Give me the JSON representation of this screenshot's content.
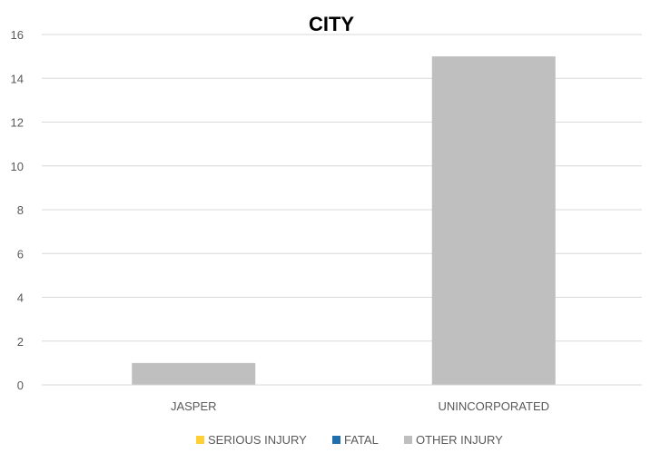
{
  "chart_data": {
    "type": "bar",
    "title": "CITY",
    "categories": [
      "JASPER",
      "UNINCORPORATED"
    ],
    "series": [
      {
        "name": "SERIOUS INJURY",
        "color": "#FFD034",
        "values": [
          0,
          0
        ]
      },
      {
        "name": "FATAL",
        "color": "#1F6FAF",
        "values": [
          0,
          0
        ]
      },
      {
        "name": "OTHER INJURY",
        "color": "#BFBFBF",
        "values": [
          1,
          15
        ]
      }
    ],
    "ylim": [
      0,
      16
    ],
    "yticks": [
      0,
      2,
      4,
      6,
      8,
      10,
      12,
      14,
      16
    ],
    "grid": true,
    "legend_position": "bottom",
    "gridline_color": "#D9D9D9"
  }
}
